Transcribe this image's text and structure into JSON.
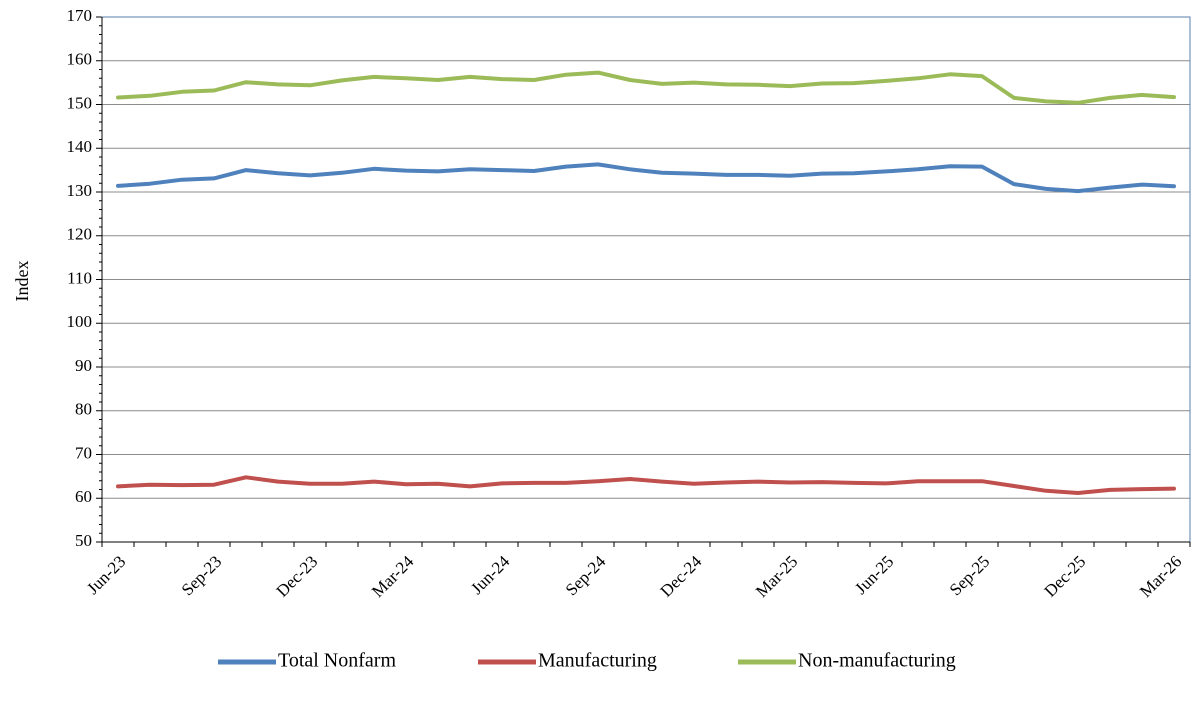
{
  "chart_data": {
    "type": "line",
    "title": "",
    "xlabel": "",
    "ylabel": "Index",
    "ylim": [
      50,
      170
    ],
    "yticks": [
      50,
      60,
      70,
      80,
      90,
      100,
      110,
      120,
      130,
      140,
      150,
      160,
      170
    ],
    "grid": "horizontal",
    "legend_position": "bottom",
    "x": [
      "Jun-23",
      "Jul-23",
      "Aug-23",
      "Sep-23",
      "Oct-23",
      "Nov-23",
      "Dec-23",
      "Jan-24",
      "Feb-24",
      "Mar-24",
      "Apr-24",
      "May-24",
      "Jun-24",
      "Jul-24",
      "Aug-24",
      "Sep-24",
      "Oct-24",
      "Nov-24",
      "Dec-24",
      "Jan-25",
      "Feb-25",
      "Mar-25",
      "Apr-25",
      "May-25",
      "Jun-25",
      "Jul-25",
      "Aug-25",
      "Sep-25",
      "Oct-25",
      "Nov-25",
      "Dec-25",
      "Jan-26",
      "Feb-26",
      "Mar-26"
    ],
    "x_tick_labels": [
      "Jun-23",
      "Sep-23",
      "Dec-23",
      "Mar-24",
      "Jun-24",
      "Sep-24",
      "Dec-24",
      "Mar-25",
      "Jun-25",
      "Sep-25",
      "Dec-25",
      "Mar-26"
    ],
    "series": [
      {
        "name": "Total Nonfarm",
        "color": "#4f81bd",
        "values": [
          131.4,
          131.9,
          132.8,
          133.1,
          135.0,
          134.3,
          133.8,
          134.4,
          135.3,
          134.9,
          134.7,
          135.2,
          135.0,
          134.8,
          135.8,
          136.3,
          135.2,
          134.4,
          134.2,
          133.9,
          133.9,
          133.7,
          134.2,
          134.3,
          134.7,
          135.2,
          135.9,
          135.8,
          131.8,
          130.7,
          130.2,
          131.0,
          131.7,
          131.3
        ]
      },
      {
        "name": "Manufacturing",
        "color": "#c0504d",
        "values": [
          62.7,
          63.1,
          63.0,
          63.1,
          64.8,
          63.8,
          63.3,
          63.3,
          63.8,
          63.2,
          63.3,
          62.7,
          63.4,
          63.5,
          63.5,
          63.9,
          64.4,
          63.8,
          63.3,
          63.6,
          63.8,
          63.6,
          63.7,
          63.5,
          63.4,
          63.9,
          63.9,
          63.9,
          62.8,
          61.7,
          61.2,
          61.9,
          62.1,
          62.2
        ]
      },
      {
        "name": "Non-manufacturing",
        "color": "#9bbb59",
        "values": [
          151.6,
          152.0,
          152.9,
          153.2,
          155.1,
          154.6,
          154.4,
          155.5,
          156.3,
          156.0,
          155.6,
          156.3,
          155.8,
          155.6,
          156.8,
          157.3,
          155.6,
          154.7,
          155.0,
          154.6,
          154.5,
          154.2,
          154.8,
          154.9,
          155.4,
          156.0,
          156.9,
          156.5,
          151.5,
          150.7,
          150.4,
          151.5,
          152.2,
          151.7
        ]
      }
    ]
  }
}
